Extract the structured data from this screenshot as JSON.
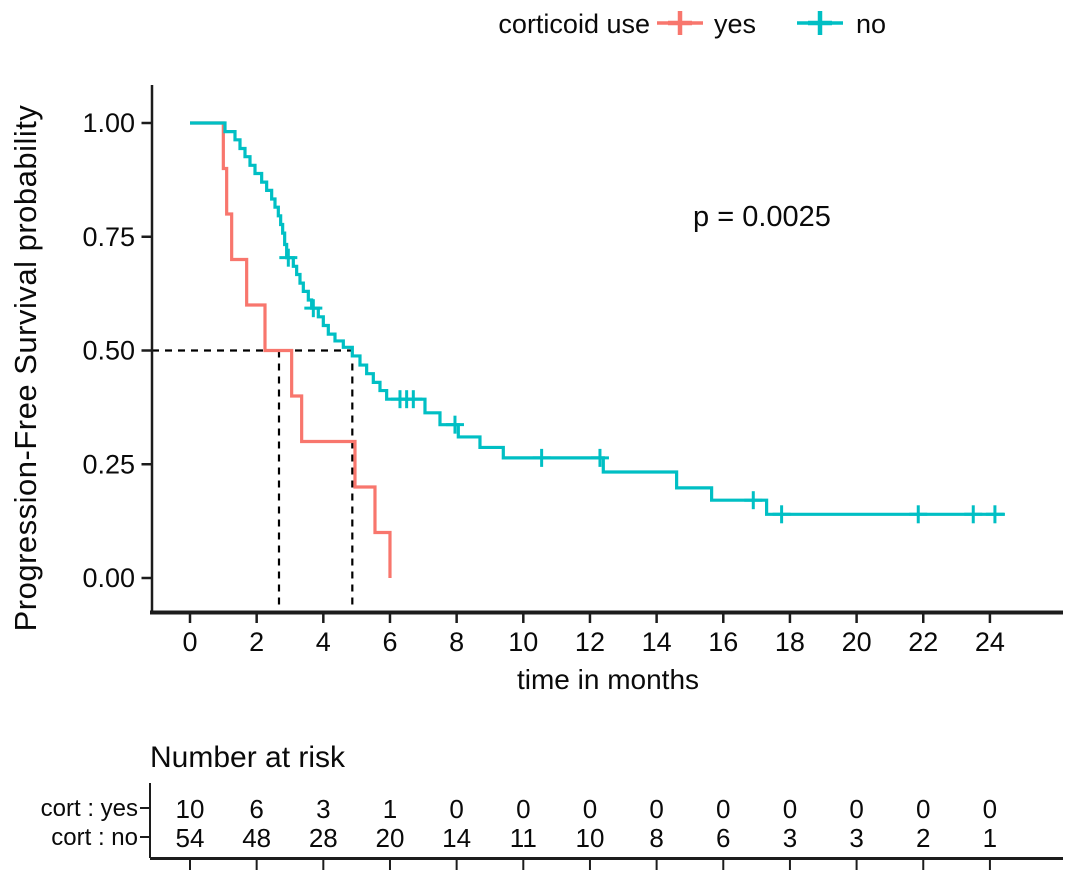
{
  "chart_data": {
    "type": "line",
    "subtype": "kaplan-meier-step-curve",
    "xlabel": "time in months",
    "ylabel": "Progression-Free Survival probability",
    "xlim": [
      0,
      25.5
    ],
    "ylim": [
      0,
      1
    ],
    "grid": false,
    "x_ticks": [
      0,
      2,
      4,
      6,
      8,
      10,
      12,
      14,
      16,
      18,
      20,
      22,
      24
    ],
    "y_ticks": [
      {
        "value": 0.0,
        "label": "0.00"
      },
      {
        "value": 0.25,
        "label": "0.25"
      },
      {
        "value": 0.5,
        "label": "0.50"
      },
      {
        "value": 0.75,
        "label": "0.75"
      },
      {
        "value": 1.0,
        "label": "1.00"
      }
    ],
    "p_value_text": "p = 0.0025",
    "legend_title": "corticoid use",
    "legend_position": "top",
    "series": [
      {
        "name": "yes",
        "color": "#F8766D",
        "start": [
          0,
          1.0
        ],
        "steps": [
          [
            1.0,
            0.9
          ],
          [
            1.1,
            0.8
          ],
          [
            1.25,
            0.7
          ],
          [
            1.7,
            0.6
          ],
          [
            2.25,
            0.5
          ],
          [
            3.05,
            0.4
          ],
          [
            3.35,
            0.3
          ],
          [
            4.95,
            0.2
          ],
          [
            5.55,
            0.1
          ],
          [
            6.0,
            0.0
          ]
        ],
        "end_time": 6.0,
        "censor_marks": []
      },
      {
        "name": "no",
        "color": "#00BFC4",
        "start": [
          0,
          1.0
        ],
        "steps": [
          [
            1.05,
            0.981
          ],
          [
            1.35,
            0.963
          ],
          [
            1.5,
            0.944
          ],
          [
            1.65,
            0.926
          ],
          [
            1.8,
            0.907
          ],
          [
            1.95,
            0.889
          ],
          [
            2.15,
            0.87
          ],
          [
            2.3,
            0.852
          ],
          [
            2.45,
            0.833
          ],
          [
            2.55,
            0.815
          ],
          [
            2.65,
            0.796
          ],
          [
            2.72,
            0.777
          ],
          [
            2.78,
            0.758
          ],
          [
            2.84,
            0.733
          ],
          [
            2.9,
            0.704
          ],
          [
            3.1,
            0.685
          ],
          [
            3.2,
            0.667
          ],
          [
            3.3,
            0.648
          ],
          [
            3.4,
            0.63
          ],
          [
            3.55,
            0.611
          ],
          [
            3.65,
            0.593
          ],
          [
            3.85,
            0.574
          ],
          [
            4.0,
            0.555
          ],
          [
            4.15,
            0.536
          ],
          [
            4.35,
            0.521
          ],
          [
            4.6,
            0.507
          ],
          [
            4.87,
            0.488
          ],
          [
            5.1,
            0.468
          ],
          [
            5.3,
            0.449
          ],
          [
            5.5,
            0.43
          ],
          [
            5.7,
            0.412
          ],
          [
            5.9,
            0.393
          ],
          [
            7.05,
            0.363
          ],
          [
            7.5,
            0.337
          ],
          [
            8.05,
            0.31
          ],
          [
            8.7,
            0.287
          ],
          [
            9.4,
            0.264
          ],
          [
            12.4,
            0.233
          ],
          [
            14.6,
            0.198
          ],
          [
            15.65,
            0.171
          ],
          [
            17.3,
            0.14
          ]
        ],
        "end_time": 24.45,
        "censor_marks": [
          [
            2.95,
            0.704
          ],
          [
            3.7,
            0.593
          ],
          [
            6.3,
            0.393
          ],
          [
            6.5,
            0.393
          ],
          [
            6.7,
            0.393
          ],
          [
            7.95,
            0.337
          ],
          [
            10.55,
            0.264
          ],
          [
            12.3,
            0.264
          ],
          [
            16.9,
            0.171
          ],
          [
            17.75,
            0.14
          ],
          [
            21.85,
            0.14
          ],
          [
            23.5,
            0.14
          ],
          [
            24.15,
            0.14
          ]
        ]
      }
    ],
    "median_lines": {
      "survival_level": 0.5,
      "times": [
        2.67,
        4.87
      ],
      "style": "dashed"
    },
    "number_at_risk": {
      "title": "Number at risk",
      "times": [
        0,
        2,
        4,
        6,
        8,
        10,
        12,
        14,
        16,
        18,
        20,
        22,
        24
      ],
      "rows": [
        {
          "label": "cort : yes",
          "color": "#F8766D",
          "values": [
            10,
            6,
            3,
            1,
            0,
            0,
            0,
            0,
            0,
            0,
            0,
            0,
            0
          ]
        },
        {
          "label": "cort : no",
          "color": "#00BFC4",
          "values": [
            54,
            48,
            28,
            20,
            14,
            11,
            10,
            8,
            6,
            3,
            3,
            2,
            1
          ]
        }
      ]
    }
  }
}
